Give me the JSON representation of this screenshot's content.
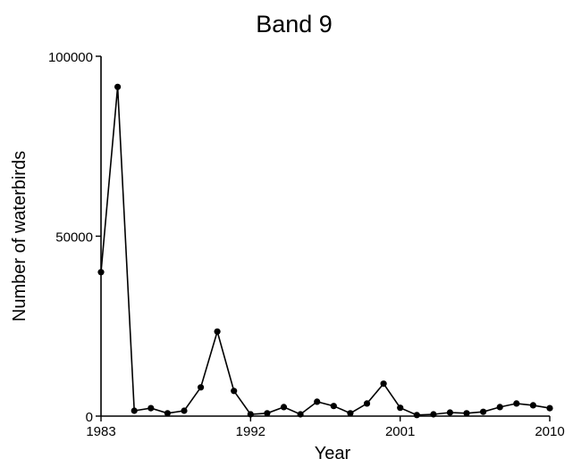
{
  "chart_data": {
    "type": "line",
    "title": "Band 9",
    "xlabel": "Year",
    "ylabel": "Number of waterbirds",
    "xlim": [
      1983,
      2010
    ],
    "ylim": [
      0,
      100000
    ],
    "x_ticks": [
      1983,
      1992,
      2001,
      2010
    ],
    "y_ticks": [
      0,
      50000,
      100000
    ],
    "x_tick_labels": [
      "1983",
      "1992",
      "2001",
      "2010"
    ],
    "y_tick_labels": [
      "0",
      "50000",
      "100000"
    ],
    "grid": false,
    "legend": "none",
    "series": [
      {
        "color": "#000000",
        "x": [
          1983,
          1984,
          1985,
          1986,
          1987,
          1988,
          1989,
          1990,
          1991,
          1992,
          1993,
          1994,
          1995,
          1996,
          1997,
          1998,
          1999,
          2000,
          2001,
          2002,
          2003,
          2004,
          2005,
          2006,
          2007,
          2008,
          2009,
          2010
        ],
        "y": [
          40000,
          91500,
          1500,
          2200,
          800,
          1500,
          8000,
          23500,
          7000,
          500,
          800,
          2500,
          500,
          4000,
          2800,
          800,
          3500,
          9000,
          2300,
          300,
          500,
          1000,
          800,
          1200,
          2500,
          3500,
          3000,
          2200
        ]
      }
    ]
  }
}
